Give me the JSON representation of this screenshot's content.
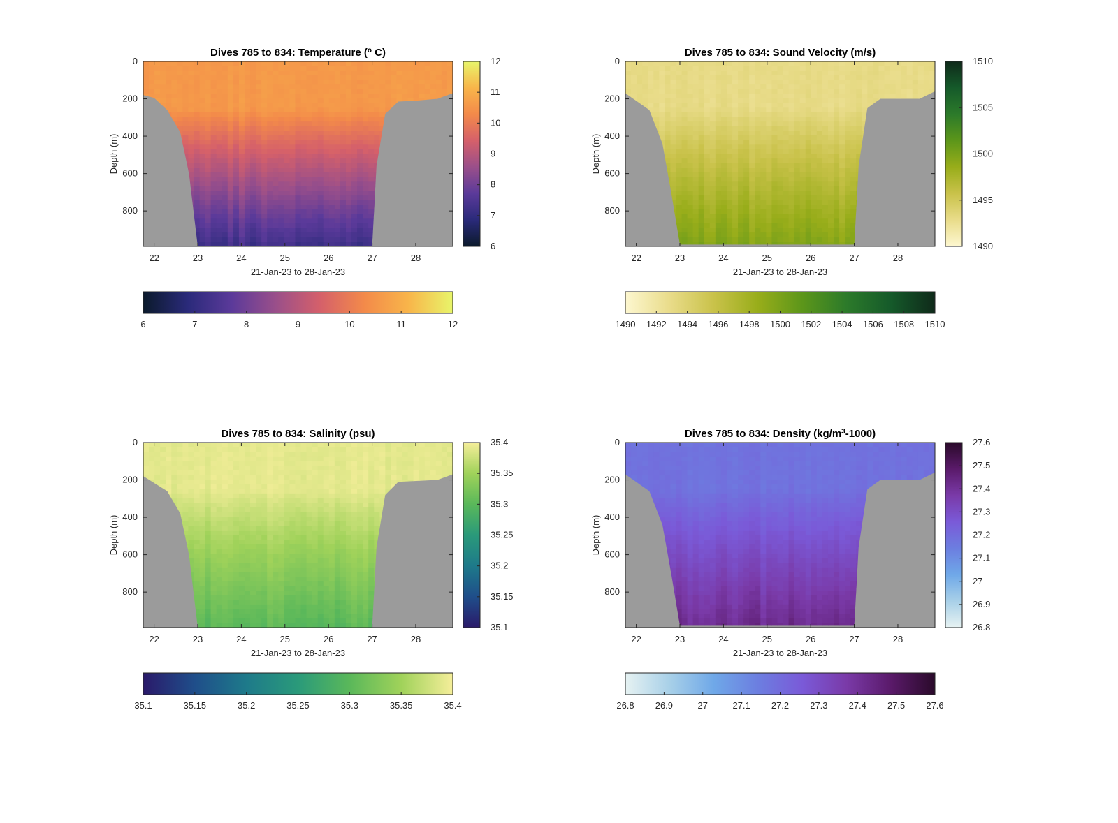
{
  "chart_data": [
    {
      "type": "heatmap",
      "title": "Dives 785 to 834: Temperature (",
      "title_sup": "o",
      "title_tail": " C)",
      "xlabel": "21-Jan-23 to 28-Jan-23",
      "ylabel": "Depth (m)",
      "xticks": [
        "22",
        "23",
        "24",
        "25",
        "26",
        "27",
        "28"
      ],
      "xlim": [
        21.75,
        28.85
      ],
      "yticks": [
        "0",
        "200",
        "400",
        "600",
        "800"
      ],
      "ylim": [
        0,
        990
      ],
      "y_reversed": true,
      "colormap": [
        "#0b1a2b",
        "#2a2a7a",
        "#5b3a9a",
        "#9a4f8a",
        "#d5606a",
        "#f38a4a",
        "#f8b54a",
        "#e8f56a"
      ],
      "bathymetry_color": "#9b9b9b",
      "clim": [
        6,
        12
      ],
      "colorbar_ticks": [
        "6",
        "7",
        "8",
        "9",
        "10",
        "11",
        "12"
      ],
      "horizontal_colorbar_ticks": [
        "6",
        "7",
        "8",
        "9",
        "10",
        "11",
        "12"
      ],
      "vertical_colorbar_ticks": [
        "12",
        "11",
        "10",
        "9",
        "8",
        "7",
        "6"
      ],
      "surface_value": 10.6,
      "deep_value": 7.3,
      "water_column_bottom_m": [
        {
          "x": 21.75,
          "depth": 180
        },
        {
          "x": 22.0,
          "depth": 195
        },
        {
          "x": 22.3,
          "depth": 260
        },
        {
          "x": 22.6,
          "depth": 380
        },
        {
          "x": 22.8,
          "depth": 600
        },
        {
          "x": 23.0,
          "depth": 990
        },
        {
          "x": 27.0,
          "depth": 990
        },
        {
          "x": 27.1,
          "depth": 560
        },
        {
          "x": 27.3,
          "depth": 280
        },
        {
          "x": 27.6,
          "depth": 215
        },
        {
          "x": 28.0,
          "depth": 210
        },
        {
          "x": 28.5,
          "depth": 200
        },
        {
          "x": 28.85,
          "depth": 170
        }
      ]
    },
    {
      "type": "heatmap",
      "title": "Dives 785 to 834: Sound Velocity (m/s)",
      "xlabel": "21-Jan-23 to 28-Jan-23",
      "ylabel": "Depth (m)",
      "xticks": [
        "22",
        "23",
        "24",
        "25",
        "26",
        "27",
        "28"
      ],
      "xlim": [
        21.75,
        28.85
      ],
      "yticks": [
        "0",
        "200",
        "400",
        "600",
        "800"
      ],
      "ylim": [
        0,
        990
      ],
      "y_reversed": true,
      "colormap": [
        "#fdf7d0",
        "#e9dc8a",
        "#c9c24a",
        "#98ad1a",
        "#5c961a",
        "#2c7a2a",
        "#155a2a",
        "#0f2a1a"
      ],
      "bathymetry_color": "#9b9b9b",
      "clim": [
        1490,
        1510
      ],
      "horizontal_colorbar_ticks": [
        "1490",
        "1492",
        "1494",
        "1496",
        "1498",
        "1500",
        "1502",
        "1504",
        "1506",
        "1508",
        "1510"
      ],
      "vertical_colorbar_ticks": [
        "1510",
        "1505",
        "1500",
        "1495",
        "1490"
      ],
      "surface_value": 1493,
      "deep_value": 1499.5,
      "water_column_bottom_m": [
        {
          "x": 21.75,
          "depth": 170
        },
        {
          "x": 22.3,
          "depth": 260
        },
        {
          "x": 22.6,
          "depth": 440
        },
        {
          "x": 22.8,
          "depth": 700
        },
        {
          "x": 23.0,
          "depth": 980
        },
        {
          "x": 27.0,
          "depth": 980
        },
        {
          "x": 27.1,
          "depth": 560
        },
        {
          "x": 27.3,
          "depth": 250
        },
        {
          "x": 27.6,
          "depth": 200
        },
        {
          "x": 28.5,
          "depth": 200
        },
        {
          "x": 28.85,
          "depth": 160
        }
      ]
    },
    {
      "type": "heatmap",
      "title": "Dives 785 to 834: Salinity (psu)",
      "xlabel": "21-Jan-23 to 28-Jan-23",
      "ylabel": "Depth (m)",
      "xticks": [
        "22",
        "23",
        "24",
        "25",
        "26",
        "27",
        "28"
      ],
      "xlim": [
        21.75,
        28.85
      ],
      "yticks": [
        "0",
        "200",
        "400",
        "600",
        "800"
      ],
      "ylim": [
        0,
        990
      ],
      "y_reversed": true,
      "colormap": [
        "#2a1a6a",
        "#1f4e8a",
        "#1e7a8a",
        "#2a9a7a",
        "#5ab85a",
        "#a0d25a",
        "#f5ee9a"
      ],
      "bathymetry_color": "#9b9b9b",
      "clim": [
        35.1,
        35.4
      ],
      "horizontal_colorbar_ticks": [
        "35.1",
        "35.15",
        "35.2",
        "35.25",
        "35.3",
        "35.35",
        "35.4"
      ],
      "vertical_colorbar_ticks": [
        "35.4",
        "35.35",
        "35.3",
        "35.25",
        "35.2",
        "35.15",
        "35.1"
      ],
      "surface_value": 35.39,
      "deep_value": 35.3,
      "water_column_bottom_m": [
        {
          "x": 21.75,
          "depth": 180
        },
        {
          "x": 22.3,
          "depth": 260
        },
        {
          "x": 22.6,
          "depth": 380
        },
        {
          "x": 22.8,
          "depth": 600
        },
        {
          "x": 23.0,
          "depth": 990
        },
        {
          "x": 27.0,
          "depth": 990
        },
        {
          "x": 27.1,
          "depth": 560
        },
        {
          "x": 27.3,
          "depth": 280
        },
        {
          "x": 27.6,
          "depth": 210
        },
        {
          "x": 28.5,
          "depth": 200
        },
        {
          "x": 28.85,
          "depth": 170
        }
      ]
    },
    {
      "type": "heatmap",
      "title": "Dives 785 to 834: Density (kg/m",
      "title_sup": "3",
      "title_tail": "-1000)",
      "xlabel": "21-Jan-23 to 28-Jan-23",
      "ylabel": "Depth (m)",
      "xticks": [
        "22",
        "23",
        "24",
        "25",
        "26",
        "27",
        "28"
      ],
      "xlim": [
        21.75,
        28.85
      ],
      "yticks": [
        "0",
        "200",
        "400",
        "600",
        "800"
      ],
      "ylim": [
        0,
        990
      ],
      "y_reversed": true,
      "colormap": [
        "#e6f2f2",
        "#a8d0e8",
        "#6fa8e8",
        "#6c7ee0",
        "#7a5ad8",
        "#7a3aa8",
        "#5a1a6a",
        "#2a0a2a"
      ],
      "bathymetry_color": "#9b9b9b",
      "clim": [
        26.8,
        27.6
      ],
      "horizontal_colorbar_ticks": [
        "26.8",
        "26.9",
        "27",
        "27.1",
        "27.2",
        "27.3",
        "27.4",
        "27.5",
        "27.6"
      ],
      "vertical_colorbar_ticks": [
        "27.6",
        "27.5",
        "27.4",
        "27.3",
        "27.2",
        "27.1",
        "27",
        "26.9",
        "26.8"
      ],
      "surface_value": 27.18,
      "deep_value": 27.42,
      "water_column_bottom_m": [
        {
          "x": 21.75,
          "depth": 170
        },
        {
          "x": 22.3,
          "depth": 260
        },
        {
          "x": 22.6,
          "depth": 440
        },
        {
          "x": 22.8,
          "depth": 700
        },
        {
          "x": 23.0,
          "depth": 980
        },
        {
          "x": 27.0,
          "depth": 980
        },
        {
          "x": 27.1,
          "depth": 560
        },
        {
          "x": 27.3,
          "depth": 250
        },
        {
          "x": 27.6,
          "depth": 200
        },
        {
          "x": 28.5,
          "depth": 200
        },
        {
          "x": 28.85,
          "depth": 160
        }
      ]
    }
  ]
}
